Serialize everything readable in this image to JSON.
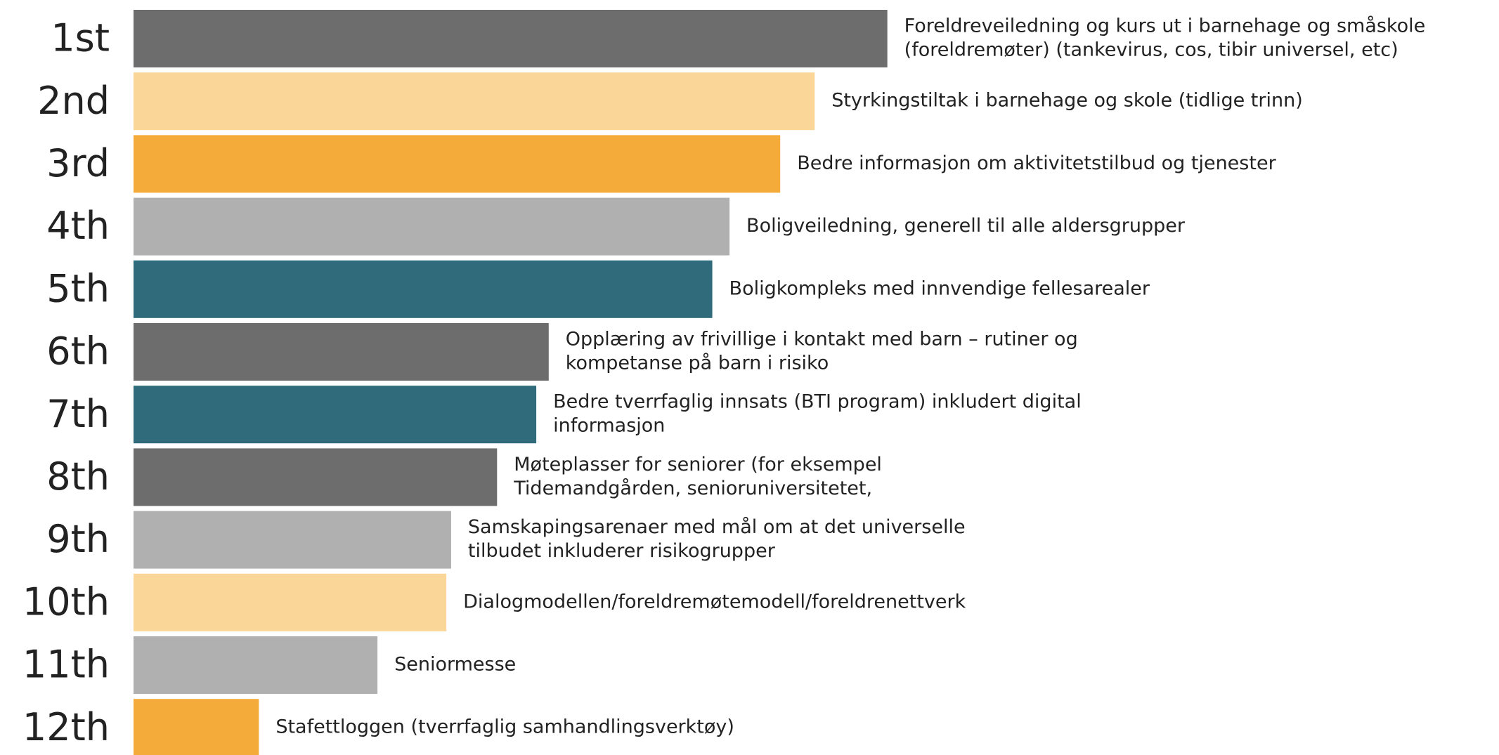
{
  "chart_data": {
    "type": "bar",
    "categories": [
      "1st",
      "2nd",
      "3rd",
      "4th",
      "5th",
      "6th",
      "7th",
      "8th",
      "9th",
      "10th",
      "11th",
      "12th"
    ],
    "labels": [
      [
        "Foreldreveiledning og kurs ut i barnehage og småskole",
        "(foreldremøter) (tankevirus, cos, tibir universel, etc)"
      ],
      [
        "Styrkingstiltak i barnehage og skole (tidlige trinn)"
      ],
      [
        "Bedre informasjon om aktivitetstilbud og tjenester"
      ],
      [
        "Boligveiledning, generell til alle aldersgrupper"
      ],
      [
        "Boligkompleks med innvendige fellesarealer"
      ],
      [
        "Opplæring av frivillige i kontakt med barn – rutiner og",
        "kompetanse på barn i risiko"
      ],
      [
        "Bedre tverrfaglig innsats (BTI program) inkludert digital",
        "informasjon"
      ],
      [
        "Møteplasser for seniorer (for eksempel",
        "Tidemandgården, senioruniversitetet,"
      ],
      [
        "Samskapingsarenaer med mål om at det universelle",
        "tilbudet inkluderer risikogrupper"
      ],
      [
        "Dialogmodellen/foreldremøtemodell/foreldrenettverk"
      ],
      [
        "Seniormesse"
      ],
      [
        "Stafettloggen (tverrfaglig samhandlingsverktøy)"
      ]
    ],
    "values": [
      788,
      712,
      676,
      623,
      605,
      434,
      421,
      380,
      332,
      327,
      255,
      131
    ],
    "colors": [
      "#6d6d6d",
      "#fad698",
      "#f5ab3a",
      "#b0b0b0",
      "#2f6b7a",
      "#6d6d6d",
      "#2f6b7a",
      "#6d6d6d",
      "#b0b0b0",
      "#fad698",
      "#b0b0b0",
      "#f5ab3a"
    ],
    "xlim": [
      0,
      800
    ]
  }
}
